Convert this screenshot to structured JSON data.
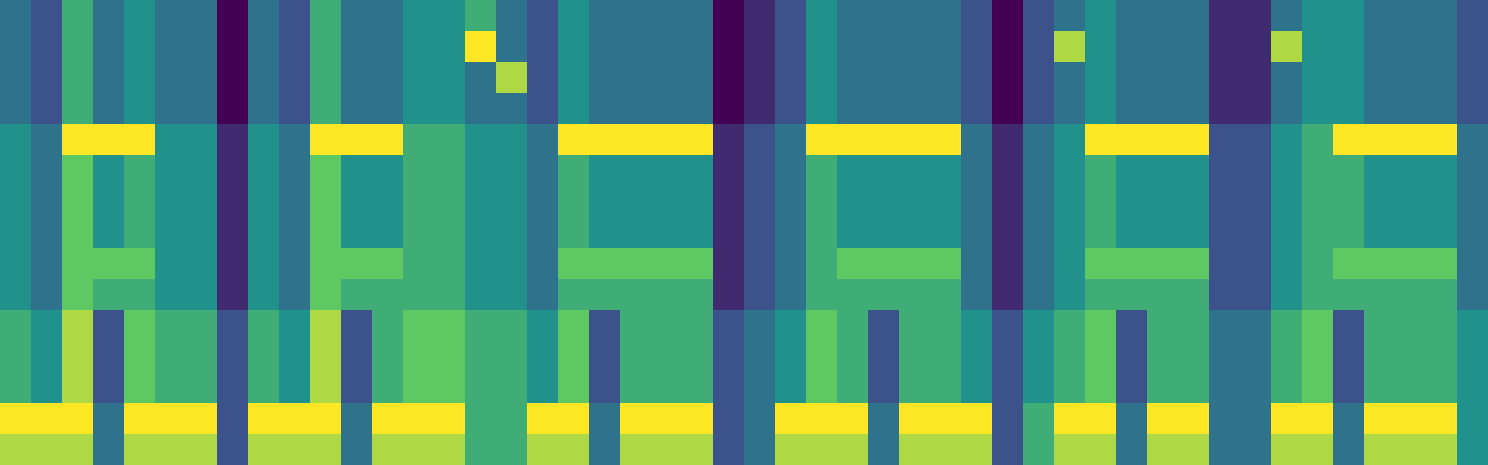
{
  "chart_data": {
    "type": "heatmap",
    "tick_labels": false,
    "cells": [
      [
        3,
        2,
        5,
        3,
        4,
        3,
        3,
        0,
        3,
        2,
        5,
        3,
        3,
        4,
        4,
        5,
        3,
        2,
        4,
        3,
        3,
        3,
        3,
        0,
        1,
        2,
        4,
        3,
        3,
        3,
        3,
        2,
        0,
        2,
        3,
        4,
        3,
        3,
        3,
        1,
        1,
        3,
        4,
        4,
        3,
        3,
        3,
        2
      ],
      [
        3,
        2,
        5,
        3,
        4,
        3,
        3,
        0,
        3,
        2,
        5,
        3,
        3,
        4,
        4,
        8,
        3,
        2,
        4,
        3,
        3,
        3,
        3,
        0,
        1,
        2,
        4,
        3,
        3,
        3,
        3,
        2,
        0,
        2,
        7,
        4,
        3,
        3,
        3,
        1,
        1,
        7,
        4,
        4,
        3,
        3,
        3,
        2
      ],
      [
        3,
        2,
        5,
        3,
        4,
        3,
        3,
        0,
        3,
        2,
        5,
        3,
        3,
        4,
        4,
        3,
        7,
        2,
        4,
        3,
        3,
        3,
        3,
        0,
        1,
        2,
        4,
        3,
        3,
        3,
        3,
        2,
        0,
        2,
        3,
        4,
        3,
        3,
        3,
        1,
        1,
        3,
        4,
        4,
        3,
        3,
        3,
        2
      ],
      [
        3,
        2,
        5,
        3,
        4,
        3,
        3,
        0,
        3,
        2,
        5,
        3,
        3,
        4,
        4,
        3,
        3,
        2,
        4,
        3,
        3,
        3,
        3,
        0,
        1,
        2,
        4,
        3,
        3,
        3,
        3,
        2,
        0,
        2,
        3,
        4,
        3,
        3,
        3,
        1,
        1,
        3,
        4,
        4,
        3,
        3,
        3,
        2
      ],
      [
        4,
        3,
        8,
        8,
        8,
        4,
        4,
        1,
        4,
        3,
        8,
        8,
        8,
        5,
        5,
        4,
        4,
        3,
        8,
        8,
        8,
        8,
        8,
        1,
        2,
        3,
        8,
        8,
        8,
        8,
        8,
        3,
        1,
        3,
        4,
        8,
        8,
        8,
        8,
        2,
        2,
        4,
        5,
        8,
        8,
        8,
        8,
        3
      ],
      [
        4,
        3,
        6,
        4,
        5,
        4,
        4,
        1,
        4,
        3,
        6,
        4,
        4,
        5,
        5,
        4,
        4,
        3,
        5,
        4,
        4,
        4,
        4,
        1,
        2,
        3,
        5,
        4,
        4,
        4,
        4,
        3,
        1,
        3,
        4,
        5,
        4,
        4,
        4,
        2,
        2,
        4,
        5,
        5,
        4,
        4,
        4,
        3
      ],
      [
        4,
        3,
        6,
        4,
        5,
        4,
        4,
        1,
        4,
        3,
        6,
        4,
        4,
        5,
        5,
        4,
        4,
        3,
        5,
        4,
        4,
        4,
        4,
        1,
        2,
        3,
        5,
        4,
        4,
        4,
        4,
        3,
        1,
        3,
        4,
        5,
        4,
        4,
        4,
        2,
        2,
        4,
        5,
        5,
        4,
        4,
        4,
        3
      ],
      [
        4,
        3,
        6,
        4,
        5,
        4,
        4,
        1,
        4,
        3,
        6,
        4,
        4,
        5,
        5,
        4,
        4,
        3,
        5,
        4,
        4,
        4,
        4,
        1,
        2,
        3,
        5,
        4,
        4,
        4,
        4,
        3,
        1,
        3,
        4,
        5,
        4,
        4,
        4,
        2,
        2,
        4,
        5,
        5,
        4,
        4,
        4,
        3
      ],
      [
        4,
        3,
        6,
        6,
        6,
        4,
        4,
        1,
        4,
        3,
        6,
        6,
        6,
        5,
        5,
        4,
        4,
        3,
        6,
        6,
        6,
        6,
        6,
        1,
        2,
        3,
        5,
        6,
        6,
        6,
        6,
        3,
        1,
        3,
        4,
        6,
        6,
        6,
        6,
        2,
        2,
        4,
        5,
        6,
        6,
        6,
        6,
        3
      ],
      [
        4,
        3,
        6,
        5,
        5,
        4,
        4,
        1,
        4,
        3,
        6,
        5,
        5,
        5,
        5,
        4,
        4,
        3,
        5,
        5,
        5,
        5,
        5,
        1,
        2,
        3,
        5,
        5,
        5,
        5,
        5,
        3,
        1,
        3,
        4,
        5,
        5,
        5,
        5,
        2,
        2,
        4,
        5,
        5,
        5,
        5,
        5,
        3
      ],
      [
        5,
        4,
        7,
        2,
        6,
        5,
        5,
        2,
        5,
        4,
        7,
        2,
        5,
        6,
        6,
        5,
        5,
        4,
        6,
        2,
        5,
        5,
        5,
        2,
        3,
        4,
        6,
        5,
        2,
        5,
        5,
        4,
        2,
        4,
        5,
        6,
        2,
        5,
        5,
        3,
        3,
        5,
        6,
        2,
        5,
        5,
        5,
        4
      ],
      [
        5,
        4,
        7,
        2,
        6,
        5,
        5,
        2,
        5,
        4,
        7,
        2,
        5,
        6,
        6,
        5,
        5,
        4,
        6,
        2,
        5,
        5,
        5,
        2,
        3,
        4,
        6,
        5,
        2,
        5,
        5,
        4,
        2,
        4,
        5,
        6,
        2,
        5,
        5,
        3,
        3,
        5,
        6,
        2,
        5,
        5,
        5,
        4
      ],
      [
        5,
        4,
        7,
        2,
        6,
        5,
        5,
        2,
        5,
        4,
        7,
        2,
        5,
        6,
        6,
        5,
        5,
        4,
        6,
        2,
        5,
        5,
        5,
        2,
        3,
        4,
        6,
        5,
        2,
        5,
        5,
        4,
        2,
        4,
        5,
        6,
        2,
        5,
        5,
        3,
        3,
        5,
        6,
        2,
        5,
        5,
        5,
        4
      ],
      [
        8,
        8,
        8,
        3,
        8,
        8,
        8,
        2,
        8,
        8,
        8,
        3,
        8,
        8,
        8,
        5,
        5,
        8,
        8,
        3,
        8,
        8,
        8,
        2,
        3,
        8,
        8,
        8,
        3,
        8,
        8,
        8,
        2,
        5,
        8,
        8,
        3,
        8,
        8,
        3,
        3,
        8,
        8,
        3,
        8,
        8,
        8,
        4
      ],
      [
        7,
        7,
        7,
        3,
        7,
        7,
        7,
        2,
        7,
        7,
        7,
        3,
        7,
        7,
        7,
        5,
        5,
        7,
        7,
        3,
        7,
        7,
        7,
        2,
        3,
        7,
        7,
        7,
        3,
        7,
        7,
        7,
        2,
        5,
        7,
        7,
        3,
        7,
        7,
        3,
        3,
        7,
        7,
        3,
        7,
        7,
        7,
        4
      ]
    ]
  }
}
